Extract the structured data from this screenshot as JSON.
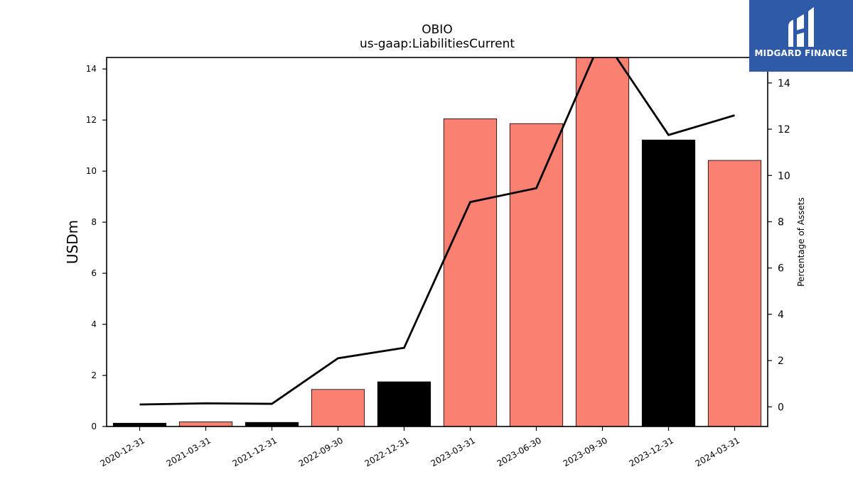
{
  "chart_data": {
    "type": "bar",
    "title": "OBIO",
    "subtitle": "us-gaap:LiabilitiesCurrent",
    "ylabel": "USDm",
    "y2label": "Percentage of Assets",
    "categories": [
      "2020-12-31",
      "2021-03-31",
      "2021-12-31",
      "2022-09-30",
      "2022-12-31",
      "2023-03-31",
      "2023-06-30",
      "2023-09-30",
      "2023-12-31",
      "2024-03-31"
    ],
    "series": [
      {
        "values": [
          0.13,
          0.18,
          0.16,
          1.45,
          1.75,
          12.05,
          11.86,
          14.5,
          11.22,
          10.42
        ],
        "colors": [
          "#000000",
          "#fa8072",
          "#000000",
          "#fa8072",
          "#000000",
          "#fa8072",
          "#fa8072",
          "#fa8072",
          "#000000",
          "#fa8072"
        ],
        "axis": "left"
      },
      {
        "type": "line",
        "color": "#000000",
        "values": [
          0.1,
          0.15,
          0.13,
          2.1,
          2.55,
          8.85,
          9.45,
          16.0,
          11.75,
          12.6
        ],
        "axis": "right"
      }
    ],
    "ylim": [
      0,
      14.45
    ],
    "y2lim": [
      -0.85,
      15.1
    ],
    "yticks": [
      0,
      2,
      4,
      6,
      8,
      10,
      12,
      14
    ],
    "y2ticks": [
      0,
      2,
      4,
      6,
      8,
      10,
      12,
      14
    ],
    "grid": false,
    "legend": "none"
  },
  "logo": {
    "text": "MIDGARD FINANCE",
    "color": "#2e5aa8"
  }
}
